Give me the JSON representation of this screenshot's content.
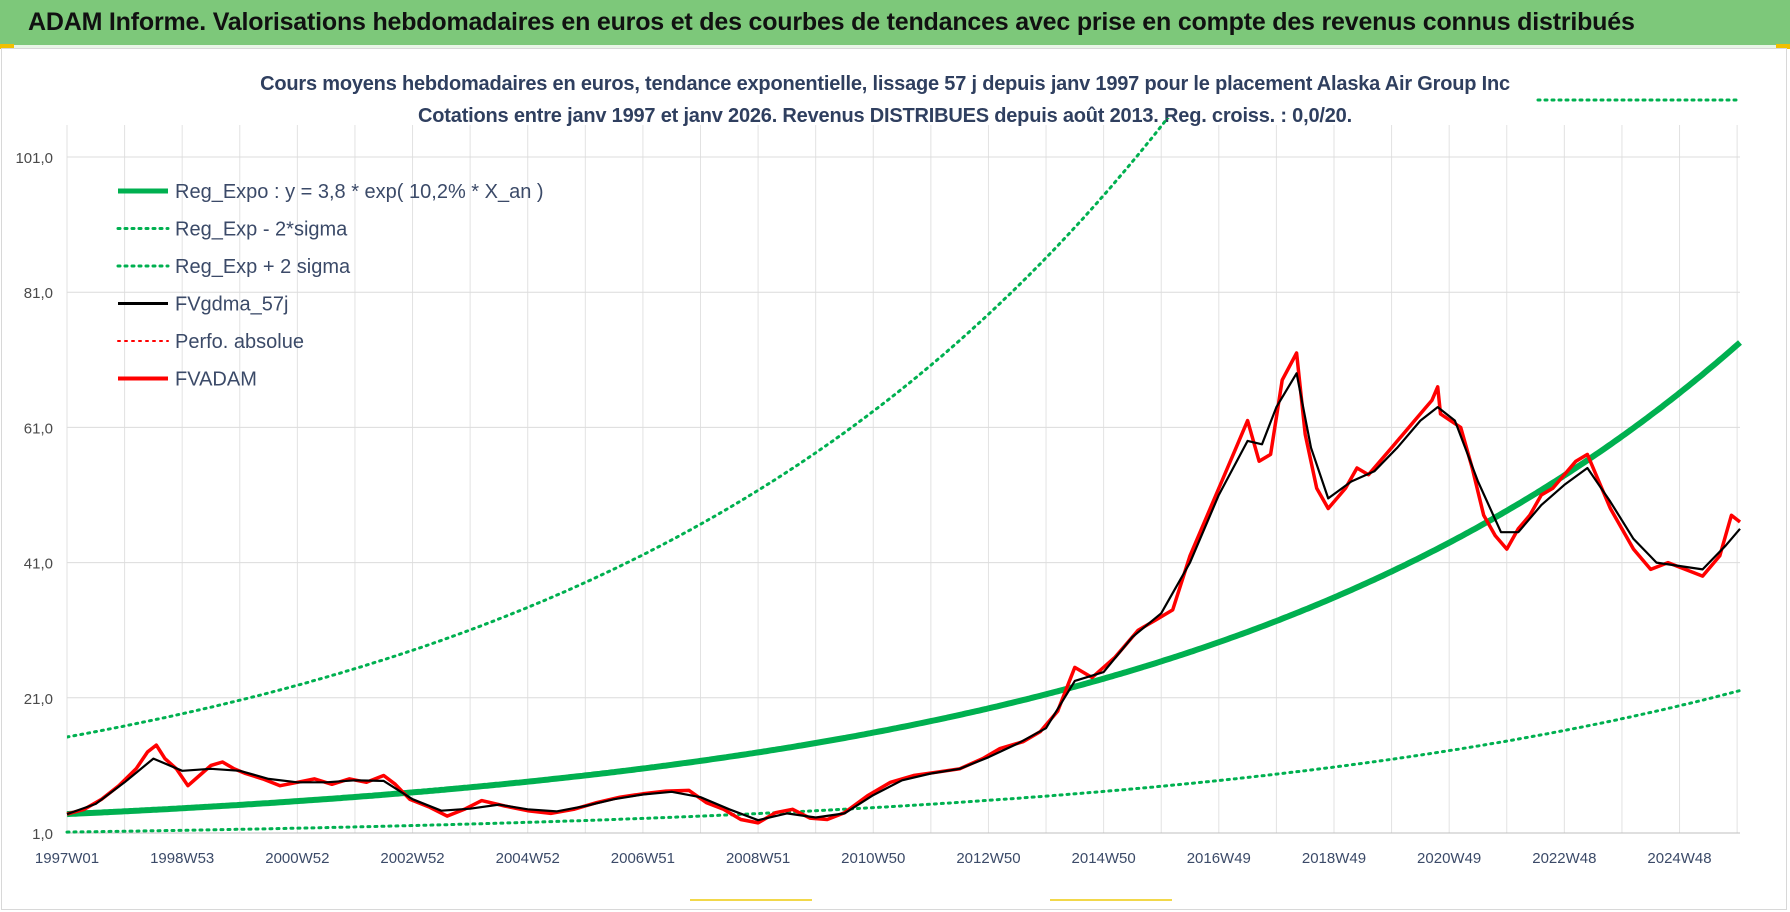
{
  "banner": {
    "title": "ADAM Informe. Valorisations hebdomadaires en euros et des courbes de tendances avec prise en compte des revenus connus distribués"
  },
  "colors": {
    "banner_bg": "#7dc87a",
    "trend_green": "#00b050",
    "price_red": "#ff0000",
    "smooth_black": "#000000",
    "title_text": "#2f3f5f"
  },
  "chart_data": {
    "type": "line",
    "title": "Cours moyens hebdomadaires en euros, tendance exponentielle, lissage 57 j depuis janv 1997  pour le placement Alaska Air Group Inc",
    "subtitle": "Cotations entre janv 1997 et janv 2026. Revenus DISTRIBUES depuis août 2013. Reg. croiss. : 0,0/20.",
    "xlabel": "",
    "ylabel": "",
    "x_range": [
      1997.0,
      2026.05
    ],
    "ylim": [
      1,
      101
    ],
    "y_ticks": [
      "1,0",
      "21,0",
      "41,0",
      "61,0",
      "81,0",
      "101,0"
    ],
    "y_tick_values": [
      1,
      21,
      41,
      61,
      81,
      101
    ],
    "x_ticks": [
      {
        "label": "1997W01",
        "x": 1997.0
      },
      {
        "label": "1998W53",
        "x": 1999.0
      },
      {
        "label": "2000W52",
        "x": 2001.0
      },
      {
        "label": "2002W52",
        "x": 2003.0
      },
      {
        "label": "2004W52",
        "x": 2005.0
      },
      {
        "label": "2006W51",
        "x": 2007.0
      },
      {
        "label": "2008W51",
        "x": 2009.0
      },
      {
        "label": "2010W50",
        "x": 2011.0
      },
      {
        "label": "2012W50",
        "x": 2013.0
      },
      {
        "label": "2014W50",
        "x": 2015.0
      },
      {
        "label": "2016W49",
        "x": 2017.0
      },
      {
        "label": "2018W49",
        "x": 2019.0
      },
      {
        "label": "2020W49",
        "x": 2021.0
      },
      {
        "label": "2022W48",
        "x": 2023.0
      },
      {
        "label": "2024W48",
        "x": 2025.0
      }
    ],
    "grid": true,
    "legend_position": "top-left",
    "legend": [
      {
        "label": "Reg_Expo : y = 3,8 * exp( 10,2% *  X_an )",
        "color": "#00b050",
        "style": "solid",
        "width": 5
      },
      {
        "label": "Reg_Exp - 2*sigma",
        "color": "#00b050",
        "style": "dotted",
        "width": 3
      },
      {
        "label": "Reg_Exp + 2 sigma",
        "color": "#00b050",
        "style": "dotted",
        "width": 3
      },
      {
        "label": "FVgdma_57j",
        "color": "#000000",
        "style": "solid",
        "width": 3
      },
      {
        "label": "Perfo. absolue",
        "color": "#ff0000",
        "style": "dotted",
        "width": 2
      },
      {
        "label": "FVADAM",
        "color": "#ff0000",
        "style": "solid",
        "width": 4
      }
    ],
    "regression": {
      "a": 3.8,
      "growth": 0.102,
      "lower_factor": 0.3,
      "upper_factor": 4.0
    },
    "series": [
      {
        "name": "FVADAM",
        "points": [
          [
            1997.0,
            3.8
          ],
          [
            1997.3,
            4.5
          ],
          [
            1997.6,
            6.0
          ],
          [
            1997.9,
            8.0
          ],
          [
            1998.2,
            10.5
          ],
          [
            1998.4,
            13.0
          ],
          [
            1998.55,
            14.0
          ],
          [
            1998.7,
            12.0
          ],
          [
            1998.9,
            10.5
          ],
          [
            1999.1,
            8.0
          ],
          [
            1999.3,
            9.5
          ],
          [
            1999.5,
            11.0
          ],
          [
            1999.7,
            11.5
          ],
          [
            1999.9,
            10.5
          ],
          [
            2000.1,
            9.8
          ],
          [
            2000.4,
            9.0
          ],
          [
            2000.7,
            8.0
          ],
          [
            2001.0,
            8.5
          ],
          [
            2001.3,
            9.0
          ],
          [
            2001.6,
            8.2
          ],
          [
            2001.9,
            9.0
          ],
          [
            2002.2,
            8.5
          ],
          [
            2002.5,
            9.5
          ],
          [
            2002.7,
            8.2
          ],
          [
            2002.95,
            6.0
          ],
          [
            2003.3,
            4.8
          ],
          [
            2003.6,
            3.5
          ],
          [
            2003.9,
            4.5
          ],
          [
            2004.2,
            5.8
          ],
          [
            2004.6,
            5.0
          ],
          [
            2005.0,
            4.3
          ],
          [
            2005.4,
            3.9
          ],
          [
            2005.8,
            4.5
          ],
          [
            2006.2,
            5.5
          ],
          [
            2006.6,
            6.3
          ],
          [
            2007.0,
            6.8
          ],
          [
            2007.4,
            7.2
          ],
          [
            2007.8,
            7.3
          ],
          [
            2008.1,
            5.5
          ],
          [
            2008.4,
            4.5
          ],
          [
            2008.7,
            3.0
          ],
          [
            2009.0,
            2.5
          ],
          [
            2009.3,
            4.0
          ],
          [
            2009.6,
            4.5
          ],
          [
            2009.9,
            3.2
          ],
          [
            2010.2,
            3.0
          ],
          [
            2010.5,
            4.0
          ],
          [
            2010.9,
            6.5
          ],
          [
            2011.3,
            8.5
          ],
          [
            2011.7,
            9.5
          ],
          [
            2012.1,
            10.0
          ],
          [
            2012.5,
            10.5
          ],
          [
            2012.9,
            12.0
          ],
          [
            2013.2,
            13.5
          ],
          [
            2013.6,
            14.5
          ],
          [
            2013.9,
            16.0
          ],
          [
            2014.2,
            19.0
          ],
          [
            2014.5,
            25.5
          ],
          [
            2014.8,
            24.0
          ],
          [
            2015.2,
            27.0
          ],
          [
            2015.6,
            31.0
          ],
          [
            2015.9,
            32.5
          ],
          [
            2016.2,
            34.0
          ],
          [
            2016.5,
            42.0
          ],
          [
            2016.8,
            48.0
          ],
          [
            2017.05,
            53.0
          ],
          [
            2017.3,
            58.0
          ],
          [
            2017.5,
            62.0
          ],
          [
            2017.7,
            56.0
          ],
          [
            2017.9,
            57.0
          ],
          [
            2018.1,
            68.0
          ],
          [
            2018.35,
            72.0
          ],
          [
            2018.5,
            60.0
          ],
          [
            2018.7,
            52.0
          ],
          [
            2018.9,
            49.0
          ],
          [
            2019.2,
            52.0
          ],
          [
            2019.4,
            55.0
          ],
          [
            2019.6,
            54.0
          ],
          [
            2019.8,
            56.0
          ],
          [
            2020.0,
            58.0
          ],
          [
            2020.2,
            60.0
          ],
          [
            2020.4,
            62.0
          ],
          [
            2020.6,
            64.0
          ],
          [
            2020.7,
            65.0
          ],
          [
            2020.8,
            67.0
          ],
          [
            2020.85,
            63.0
          ],
          [
            2021.2,
            61.0
          ],
          [
            2021.4,
            55.0
          ],
          [
            2021.6,
            48.0
          ],
          [
            2021.8,
            45.0
          ],
          [
            2022.0,
            43.0
          ],
          [
            2022.2,
            46.0
          ],
          [
            2022.4,
            48.0
          ],
          [
            2022.6,
            51.0
          ],
          [
            2022.8,
            52.0
          ],
          [
            2023.0,
            54.0
          ],
          [
            2023.2,
            56.0
          ],
          [
            2023.4,
            57.0
          ],
          [
            2023.6,
            53.0
          ],
          [
            2023.8,
            49.0
          ],
          [
            2024.0,
            46.0
          ],
          [
            2024.2,
            43.0
          ],
          [
            2024.5,
            40.0
          ],
          [
            2024.8,
            41.0
          ],
          [
            2025.1,
            40.0
          ],
          [
            2025.4,
            39.0
          ],
          [
            2025.7,
            42.0
          ],
          [
            2025.9,
            48.0
          ],
          [
            2026.05,
            47.0
          ]
        ]
      },
      {
        "name": "FVgdma_57j",
        "points": [
          [
            1997.0,
            3.8
          ],
          [
            1997.5,
            5.3
          ],
          [
            1998.0,
            8.5
          ],
          [
            1998.5,
            12.0
          ],
          [
            1999.0,
            10.2
          ],
          [
            1999.5,
            10.5
          ],
          [
            2000.0,
            10.2
          ],
          [
            2000.5,
            9.0
          ],
          [
            2001.0,
            8.5
          ],
          [
            2001.5,
            8.5
          ],
          [
            2002.0,
            8.8
          ],
          [
            2002.5,
            8.7
          ],
          [
            2003.0,
            6.0
          ],
          [
            2003.5,
            4.3
          ],
          [
            2004.0,
            4.6
          ],
          [
            2004.5,
            5.2
          ],
          [
            2005.0,
            4.5
          ],
          [
            2005.5,
            4.2
          ],
          [
            2006.0,
            5.0
          ],
          [
            2006.5,
            6.0
          ],
          [
            2007.0,
            6.7
          ],
          [
            2007.5,
            7.1
          ],
          [
            2008.0,
            6.3
          ],
          [
            2008.5,
            4.5
          ],
          [
            2009.0,
            2.9
          ],
          [
            2009.5,
            3.9
          ],
          [
            2010.0,
            3.3
          ],
          [
            2010.5,
            3.9
          ],
          [
            2011.0,
            6.6
          ],
          [
            2011.5,
            8.8
          ],
          [
            2012.0,
            9.8
          ],
          [
            2012.5,
            10.5
          ],
          [
            2013.0,
            12.2
          ],
          [
            2013.5,
            14.2
          ],
          [
            2014.0,
            16.5
          ],
          [
            2014.5,
            23.5
          ],
          [
            2015.0,
            24.8
          ],
          [
            2015.5,
            30.0
          ],
          [
            2016.0,
            33.5
          ],
          [
            2016.5,
            41.0
          ],
          [
            2017.0,
            51.0
          ],
          [
            2017.5,
            59.0
          ],
          [
            2017.75,
            58.5
          ],
          [
            2018.0,
            64.0
          ],
          [
            2018.35,
            69.0
          ],
          [
            2018.6,
            58.0
          ],
          [
            2018.9,
            50.5
          ],
          [
            2019.3,
            53.0
          ],
          [
            2019.7,
            54.5
          ],
          [
            2020.1,
            58.0
          ],
          [
            2020.5,
            62.0
          ],
          [
            2020.8,
            64.0
          ],
          [
            2021.1,
            62.0
          ],
          [
            2021.5,
            53.0
          ],
          [
            2021.9,
            45.5
          ],
          [
            2022.2,
            45.5
          ],
          [
            2022.6,
            49.5
          ],
          [
            2023.0,
            52.5
          ],
          [
            2023.4,
            55.0
          ],
          [
            2023.8,
            50.0
          ],
          [
            2024.2,
            44.5
          ],
          [
            2024.6,
            41.0
          ],
          [
            2025.0,
            40.5
          ],
          [
            2025.4,
            40.0
          ],
          [
            2025.8,
            43.5
          ],
          [
            2026.05,
            46.0
          ]
        ]
      }
    ]
  }
}
